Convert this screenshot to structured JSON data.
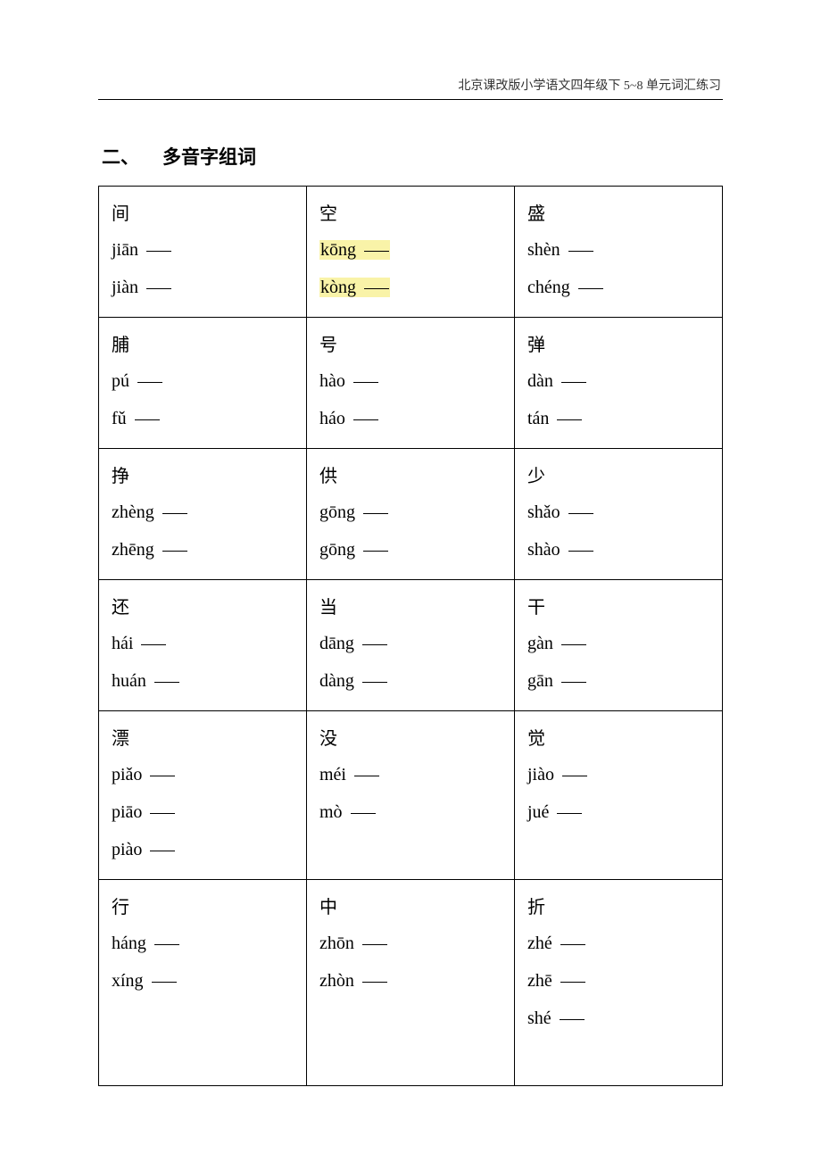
{
  "header": {
    "text": "北京课改版小学语文四年级下 5~8 单元词汇练习"
  },
  "section": {
    "number": "二、",
    "title": "多音字组词"
  },
  "table": {
    "columns": 3,
    "border_color": "#000000",
    "background_color": "#ffffff",
    "char_fontsize": 20,
    "pinyin_fontsize": 20,
    "pinyin_font": "Times New Roman",
    "rows": [
      [
        {
          "char": "间",
          "readings": [
            {
              "pinyin": "jiān",
              "hl": false
            },
            {
              "pinyin": "jiàn",
              "hl": false
            }
          ]
        },
        {
          "char": "空",
          "readings": [
            {
              "pinyin": "kōng",
              "hl": true
            },
            {
              "pinyin": "kòng",
              "hl": true
            }
          ]
        },
        {
          "char": "盛",
          "readings": [
            {
              "pinyin": "shèn",
              "hl": false
            },
            {
              "pinyin": "chéng",
              "hl": false
            }
          ]
        }
      ],
      [
        {
          "char": "脯",
          "readings": [
            {
              "pinyin": "pú",
              "hl": false
            },
            {
              "pinyin": "fǔ",
              "hl": false
            }
          ]
        },
        {
          "char": "号",
          "readings": [
            {
              "pinyin": "hào",
              "hl": false
            },
            {
              "pinyin": "háo",
              "hl": false
            }
          ]
        },
        {
          "char": "弹",
          "readings": [
            {
              "pinyin": "dàn",
              "hl": false
            },
            {
              "pinyin": "tán",
              "hl": false
            }
          ]
        }
      ],
      [
        {
          "char": "挣",
          "readings": [
            {
              "pinyin": "zhèng",
              "hl": false
            },
            {
              "pinyin": "zhēng",
              "hl": false
            }
          ]
        },
        {
          "char": "供",
          "readings": [
            {
              "pinyin": "gōng",
              "hl": false
            },
            {
              "pinyin": "gōng",
              "hl": false
            }
          ]
        },
        {
          "char": "少",
          "readings": [
            {
              "pinyin": "shǎo",
              "hl": false
            },
            {
              "pinyin": "shào",
              "hl": false
            }
          ]
        }
      ],
      [
        {
          "char": "还",
          "readings": [
            {
              "pinyin": "hái",
              "hl": false
            },
            {
              "pinyin": "huán",
              "hl": false
            }
          ]
        },
        {
          "char": "当",
          "readings": [
            {
              "pinyin": "dāng",
              "hl": false
            },
            {
              "pinyin": "dàng",
              "hl": false
            }
          ]
        },
        {
          "char": "干",
          "readings": [
            {
              "pinyin": "gàn",
              "hl": false
            },
            {
              "pinyin": "gān",
              "hl": false
            }
          ]
        }
      ],
      [
        {
          "char": "漂",
          "readings": [
            {
              "pinyin": "piǎo",
              "hl": false
            },
            {
              "pinyin": "piāo",
              "hl": false
            },
            {
              "pinyin": "piào",
              "hl": false
            }
          ]
        },
        {
          "char": "没",
          "readings": [
            {
              "pinyin": "méi",
              "hl": false
            },
            {
              "pinyin": "mò",
              "hl": false
            }
          ]
        },
        {
          "char": "觉",
          "readings": [
            {
              "pinyin": "jiào",
              "hl": false
            },
            {
              "pinyin": "jué",
              "hl": false
            }
          ]
        }
      ],
      [
        {
          "char": "行",
          "readings": [
            {
              "pinyin": "háng",
              "hl": false
            },
            {
              "pinyin": "xíng",
              "hl": false
            }
          ],
          "pad_extra": 2
        },
        {
          "char": "中",
          "readings": [
            {
              "pinyin": "zhōn",
              "hl": false
            },
            {
              "pinyin": "zhòn",
              "hl": false
            }
          ],
          "pad_extra": 2
        },
        {
          "char": "折",
          "readings": [
            {
              "pinyin": "zhé",
              "hl": false
            },
            {
              "pinyin": "zhē",
              "hl": false
            },
            {
              "pinyin": "shé",
              "hl": false
            }
          ],
          "pad_extra": 1
        }
      ]
    ]
  }
}
